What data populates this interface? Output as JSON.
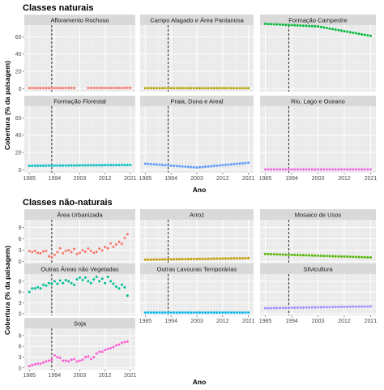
{
  "sections": [
    {
      "title": "Classes naturais",
      "ylabel": "Cobertura (% da paisagem)",
      "xlabel": "Ano"
    },
    {
      "title": "Classes não-naturais",
      "ylabel": "Cobertura (% da paisagem)",
      "xlabel": "Ano"
    }
  ],
  "chart_data": [
    {
      "type": "scatter",
      "title": "Classes naturais",
      "xlabel": "Ano",
      "ylabel": "Cobertura (% da paisagem)",
      "x_ticks": [
        "1985",
        "1994",
        "2003",
        "2012",
        "2021"
      ],
      "y_ticks": [
        "0",
        "20",
        "40",
        "60"
      ],
      "ylim": [
        0,
        70
      ],
      "xlim": [
        1985,
        2021
      ],
      "reference_line_x": 1993,
      "grid": true,
      "panels": [
        {
          "name": "Afloramento Rochoso",
          "color": "#F8766D",
          "missing": [
            2002,
            2003,
            2004,
            2005
          ],
          "start": 0.6,
          "end": 0.8
        },
        {
          "name": "Campo Alagado e Área Pantanosa",
          "color": "#B79F00",
          "start": 0.5,
          "end": 0.5
        },
        {
          "name": "Formação Campestre",
          "color": "#00BA38",
          "start": 75,
          "mid": 72,
          "end": 61
        },
        {
          "name": "Formação Florestal",
          "color": "#00BFC4",
          "start": 4.5,
          "end": 5.5
        },
        {
          "name": "Praia, Duna e Areal",
          "color": "#619CFF",
          "start": 7,
          "mid": 2.5,
          "end": 8
        },
        {
          "name": "Rio, Lago e Oceano",
          "color": "#F564E3",
          "start": 0.3,
          "end": 0.3
        }
      ]
    },
    {
      "type": "scatter",
      "title": "Classes não-naturais",
      "xlabel": "Ano",
      "ylabel": "Cobertura (% da paisagem)",
      "x_ticks": [
        "1985",
        "1994",
        "2003",
        "2012",
        "2021"
      ],
      "y_ticks": [
        "0",
        "3",
        "6",
        "9"
      ],
      "ylim": [
        0,
        11
      ],
      "xlim": [
        1985,
        2021
      ],
      "reference_line_x": 1993,
      "grid": true,
      "panels": [
        {
          "name": "Área Urbanizada",
          "color": "#F8766D",
          "values": [
            2.8,
            2.5,
            2.8,
            2.3,
            2.2,
            2.7,
            2.8,
            1.4,
            1.2,
            1.8,
            2.5,
            3.5,
            2.2,
            2.8,
            3.0,
            2.5,
            3.3,
            2.0,
            2.3,
            3.0,
            2.6,
            3.4,
            2.8,
            2.3,
            2.6,
            3.4,
            2.9,
            3.8,
            3.5,
            4.8,
            3.9,
            4.5,
            5.2,
            4.7,
            6.2,
            7.2
          ]
        },
        {
          "name": "Arroz",
          "color": "#C49A00",
          "start": 0.5,
          "end": 0.9
        },
        {
          "name": "Mosaico de Usos",
          "color": "#53B400",
          "start": 2.0,
          "end": 1.1
        },
        {
          "name": "Outras Áreas não Vegetadas",
          "color": "#00C094",
          "values": [
            6.0,
            7.0,
            7.0,
            7.3,
            7.0,
            8.0,
            7.8,
            8.5,
            8.2,
            9.0,
            8.3,
            9.2,
            8.5,
            9.3,
            9.0,
            8.5,
            8.0,
            9.5,
            10.0,
            9.3,
            10.0,
            9.0,
            8.5,
            9.5,
            10.2,
            9.0,
            9.7,
            8.5,
            10.2,
            9.0,
            8.3,
            7.5,
            7.0,
            8.0,
            7.3,
            5.0
          ]
        },
        {
          "name": "Outras Lavouras Temporárias",
          "color": "#00B6EB",
          "start": 0.3,
          "end": 0.3
        },
        {
          "name": "Silvicultura",
          "color": "#A58AFF",
          "start": 1.5,
          "end": 2.0
        },
        {
          "name": "Soja",
          "color": "#FB61D7",
          "values": [
            0.5,
            0.8,
            1.0,
            1.2,
            1.2,
            1.5,
            1.8,
            2.0,
            2.3,
            3.5,
            3.0,
            2.8,
            2.0,
            2.0,
            1.8,
            2.3,
            2.5,
            1.8,
            2.0,
            2.3,
            3.0,
            3.2,
            2.5,
            3.0,
            4.0,
            4.5,
            4.5,
            5.0,
            5.3,
            5.5,
            5.8,
            6.3,
            6.5,
            7.0,
            7.2,
            7.3
          ]
        }
      ]
    }
  ]
}
